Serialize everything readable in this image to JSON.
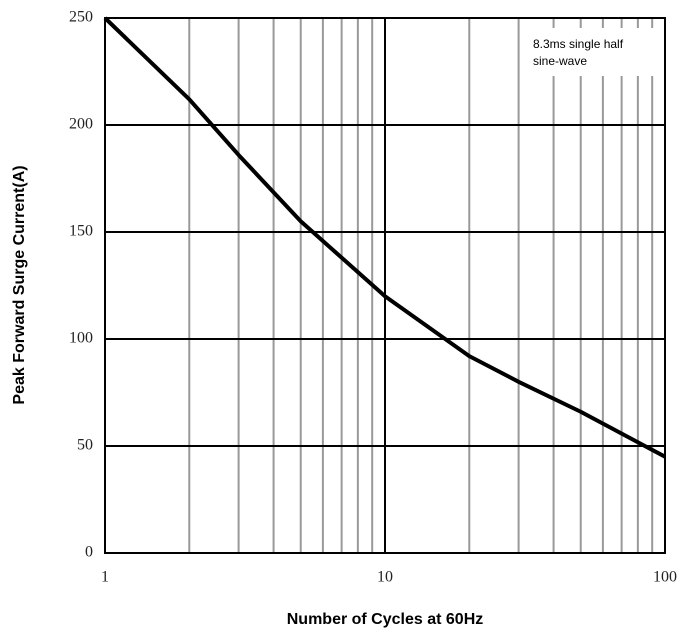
{
  "chart_data": {
    "type": "line",
    "x_label": "Number of Cycles at 60Hz",
    "y_label": "Peak Forward Surge Current(A)",
    "annotation": [
      "8.3ms single half",
      "sine-wave"
    ],
    "x": [
      1,
      2,
      3,
      5,
      10,
      20,
      30,
      50,
      100
    ],
    "series": [
      {
        "name": "Surge current",
        "color": "#000000",
        "values": [
          250,
          212,
          186,
          155,
          120,
          92,
          80,
          66,
          45
        ]
      }
    ],
    "xlim": [
      1,
      100
    ],
    "xscale": "log",
    "xticks": [
      1,
      10,
      100
    ],
    "xminor": [
      2,
      3,
      4,
      5,
      6,
      7,
      8,
      9,
      20,
      30,
      40,
      50,
      60,
      70,
      80,
      90
    ],
    "ylim": [
      0,
      250
    ],
    "yticks": [
      0,
      50,
      100,
      150,
      200,
      250
    ],
    "grid": true
  }
}
